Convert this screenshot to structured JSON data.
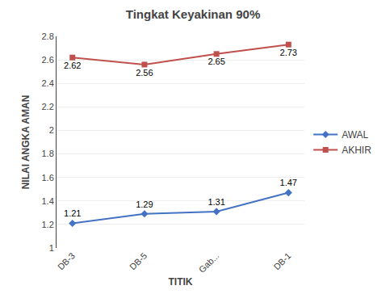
{
  "chart_data": {
    "type": "line",
    "title": "Tingkat Keyakinan 90%",
    "xlabel": "TITIK",
    "ylabel": "NILAI ANGKA AMAN",
    "categories": [
      "DB-3",
      "DB-5",
      "Gab...",
      "DB-1"
    ],
    "series": [
      {
        "name": "AWAL",
        "color": "#4472C4",
        "marker": "diamond",
        "values": [
          1.21,
          1.29,
          1.31,
          1.47
        ]
      },
      {
        "name": "AKHIR",
        "color": "#C0504D",
        "marker": "square",
        "values": [
          2.62,
          2.56,
          2.65,
          2.73
        ]
      }
    ],
    "ylim": [
      1.0,
      2.8
    ],
    "yticks": [
      1.0,
      1.2,
      1.4,
      1.6,
      1.8,
      2.0,
      2.2,
      2.4,
      2.6,
      2.8
    ],
    "grid": true,
    "legend": "right",
    "data_labels": true
  }
}
